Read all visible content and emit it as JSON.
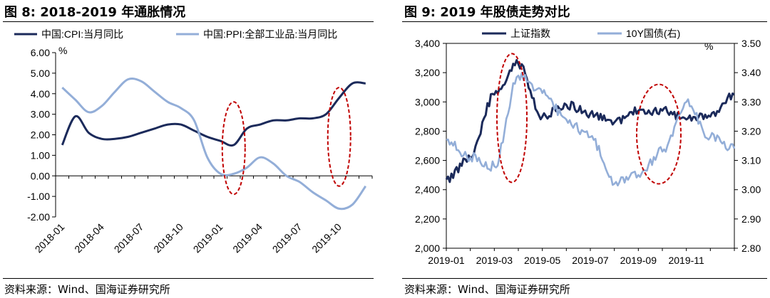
{
  "chart_data": [
    {
      "type": "line",
      "title": "图 8:  2018-2019 年通胀情况",
      "unit_label": "%",
      "ylim": [
        -2.0,
        6.0
      ],
      "yticks": [
        "6.00",
        "5.00",
        "4.00",
        "3.00",
        "2.00",
        "1.00",
        "0.00",
        "-1.00",
        "-2.00"
      ],
      "xticks": [
        "2018-01",
        "2018-04",
        "2018-07",
        "2018-10",
        "2019-01",
        "2019-04",
        "2019-07",
        "2019-10"
      ],
      "x": [
        "2018-01",
        "2018-02",
        "2018-03",
        "2018-04",
        "2018-05",
        "2018-06",
        "2018-07",
        "2018-08",
        "2018-09",
        "2018-10",
        "2018-11",
        "2018-12",
        "2019-01",
        "2019-02",
        "2019-03",
        "2019-04",
        "2019-05",
        "2019-06",
        "2019-07",
        "2019-08",
        "2019-09",
        "2019-10",
        "2019-11",
        "2019-12"
      ],
      "series": [
        {
          "name": "中国:CPI:当月同比",
          "color": "#1b2a5a",
          "values": [
            1.5,
            2.9,
            2.1,
            1.8,
            1.8,
            1.9,
            2.1,
            2.3,
            2.5,
            2.5,
            2.2,
            1.9,
            1.7,
            1.5,
            2.3,
            2.5,
            2.7,
            2.7,
            2.8,
            2.8,
            3.0,
            3.8,
            4.5,
            4.5
          ]
        },
        {
          "name": "中国:PPI:全部工业品:当月同比",
          "color": "#93aed8",
          "values": [
            4.3,
            3.7,
            3.1,
            3.4,
            4.1,
            4.7,
            4.6,
            4.1,
            3.6,
            3.3,
            2.7,
            0.9,
            0.1,
            0.1,
            0.4,
            0.9,
            0.6,
            0.0,
            -0.3,
            -0.8,
            -1.2,
            -1.6,
            -1.4,
            -0.5
          ]
        }
      ],
      "highlights": [
        {
          "center": "2019-02",
          "from": 3.6,
          "to": -0.9
        },
        {
          "center": "2019-10",
          "from": 4.3,
          "to": -0.5
        }
      ],
      "source": "资料来源：Wind、国海证券研究所"
    },
    {
      "type": "line",
      "title": "图 9:  2019 年股债走势对比",
      "unit_label": "%",
      "ylim_left": [
        2000,
        3400
      ],
      "ylim_right": [
        2.8,
        3.5
      ],
      "yticks_left": [
        "3,400",
        "3,200",
        "3,000",
        "2,800",
        "2,600",
        "2,400",
        "2,200",
        "2,000"
      ],
      "yticks_right": [
        "3.50",
        "3.40",
        "3.30",
        "3.20",
        "3.10",
        "3.00",
        "2.90",
        "2.80"
      ],
      "xticks": [
        "2019-01",
        "2019-03",
        "2019-05",
        "2019-07",
        "2019-09",
        "2019-11"
      ],
      "x": [
        "2019-01",
        "2019-02",
        "2019-03",
        "2019-04",
        "2019-05",
        "2019-06",
        "2019-07",
        "2019-08",
        "2019-09",
        "2019-10",
        "2019-11",
        "2019-12",
        "2020-01"
      ],
      "series": [
        {
          "name": "上证指数",
          "axis": "left",
          "color": "#1b2a5a",
          "values": [
            2470,
            2620,
            3050,
            3260,
            2900,
            2980,
            2920,
            2860,
            2940,
            2940,
            2880,
            2900,
            3050
          ]
        },
        {
          "name": "10Y国债(右)",
          "axis": "right",
          "color": "#93aed8",
          "values": [
            3.17,
            3.11,
            3.08,
            3.39,
            3.33,
            3.24,
            3.18,
            3.02,
            3.05,
            3.13,
            3.3,
            3.18,
            3.14
          ]
        }
      ],
      "highlights": [
        {
          "center": "2019-04",
          "from_left": 3330,
          "to_left": 2450
        },
        {
          "center": "2019-10",
          "from_left": 3120,
          "to_left": 2440
        }
      ],
      "source": "资料来源：Wind、国海证券研究所"
    }
  ]
}
